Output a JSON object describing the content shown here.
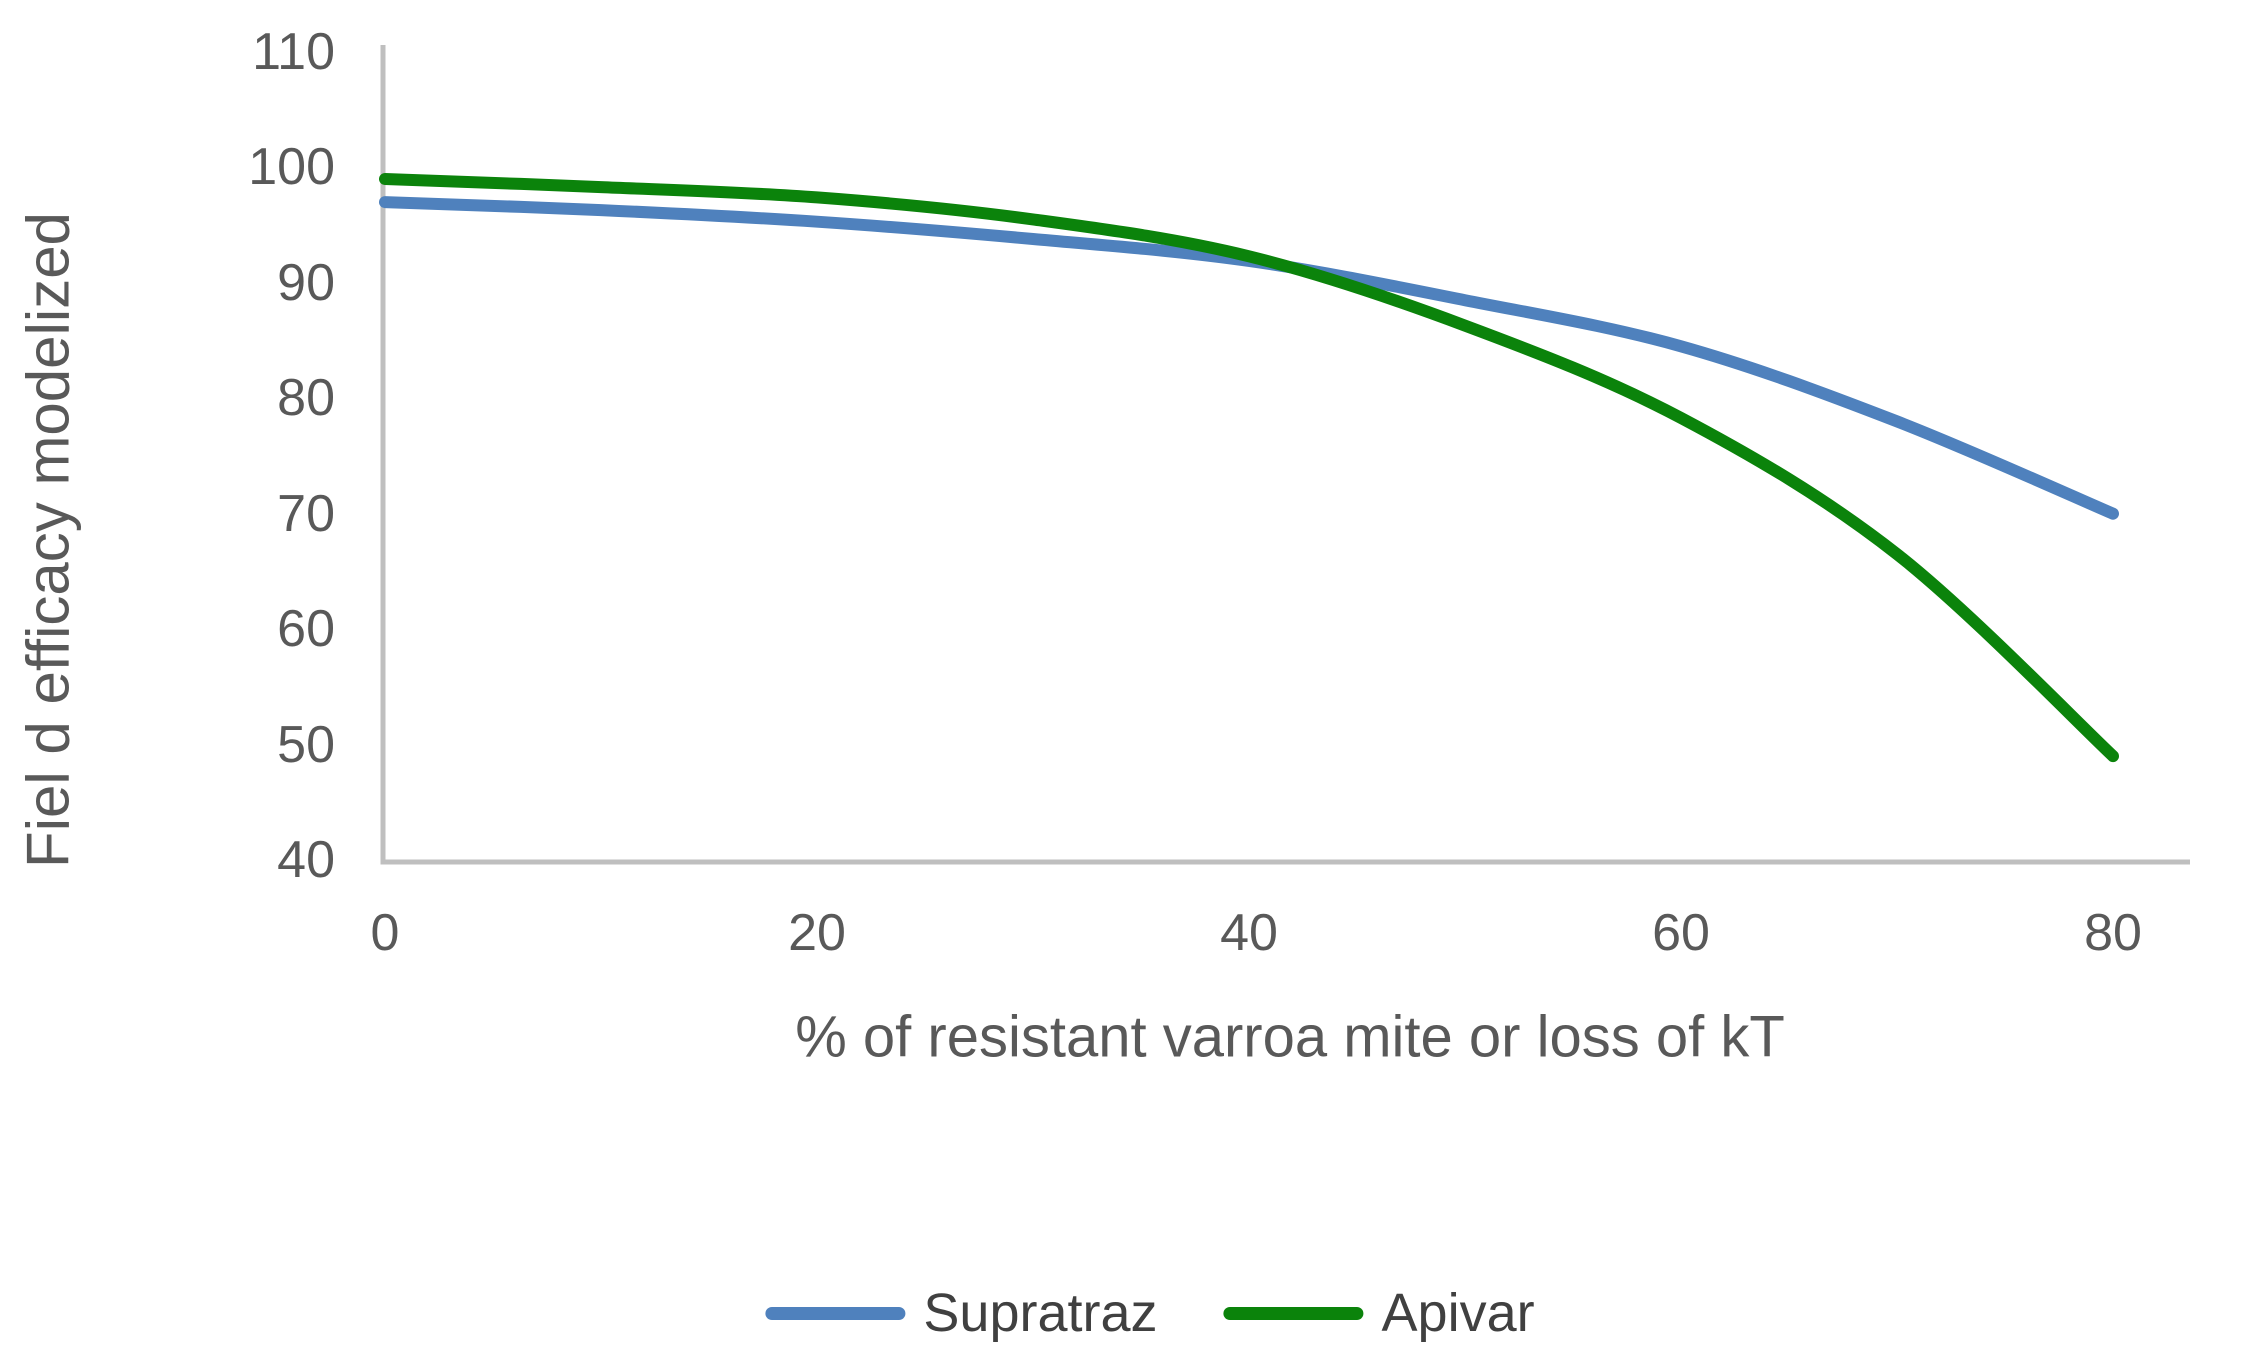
{
  "chart_data": {
    "type": "line",
    "xlabel": "% of resistant varroa mite or loss of kT",
    "ylabel": "Fiel d efficacy modelized",
    "x": [
      0,
      10,
      20,
      30,
      40,
      50,
      60,
      70,
      80
    ],
    "series": [
      {
        "name": "Supratraz",
        "color": "#4F81BD",
        "values": [
          97,
          96.3,
          95.3,
          93.8,
          91.9,
          88.5,
          84.5,
          78,
          70
        ]
      },
      {
        "name": "Apivar",
        "color": "#0B830B",
        "values": [
          99,
          98.3,
          97.4,
          95.5,
          92.3,
          86.3,
          78.3,
          66.5,
          49
        ]
      }
    ],
    "xticks": [
      0,
      20,
      40,
      60,
      80
    ],
    "yticks": [
      40,
      50,
      60,
      70,
      80,
      90,
      100,
      110
    ],
    "xlim": [
      0,
      80
    ],
    "ylim": [
      40,
      110
    ],
    "grid": false,
    "legend_position": "bottom",
    "colors": {
      "axis_line": "#BFBFBF",
      "tick_label": "#595959",
      "axis_title": "#595959",
      "legend_text": "#404040",
      "background": "#FFFFFF"
    }
  }
}
